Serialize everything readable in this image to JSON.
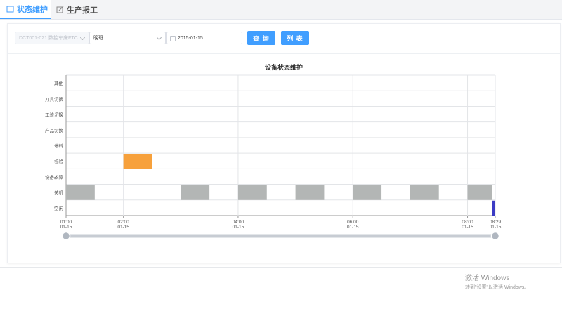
{
  "tabs": [
    {
      "label": "状态维护",
      "active": true,
      "icon": "calendar-icon"
    },
    {
      "label": "生产报工",
      "active": false,
      "icon": "edit-icon"
    }
  ],
  "filters": {
    "machine_value": "DCT001-021 数控车床FTC",
    "shift_value": "晚班",
    "date_value": "2015-01-15",
    "query_label": "查 询",
    "list_label": "列 表"
  },
  "colors": {
    "accent": "#409eff",
    "orange": "#f7a13c",
    "gray": "#b3b6b5",
    "blue": "#3b3bc4"
  },
  "chart_data": {
    "type": "timeline",
    "title": "设备状态维护",
    "categories": [
      "其他",
      "刀具切换",
      "工装切换",
      "产品切换",
      "停料",
      "检验",
      "设备故障",
      "关机",
      "空闲"
    ],
    "x_range": [
      "2015-01-15 01:00",
      "2015-01-15 08:29"
    ],
    "x_ticks": [
      {
        "time": "01:00",
        "date": "01-15"
      },
      {
        "time": "02:00",
        "date": "01-15"
      },
      {
        "time": "04:00",
        "date": "01-15"
      },
      {
        "time": "06:00",
        "date": "01-15"
      },
      {
        "time": "08:00",
        "date": "01-15"
      },
      {
        "time": "08:29",
        "date": "01-15"
      }
    ],
    "segments": [
      {
        "category": "检验",
        "start": "02:00",
        "end": "02:30",
        "color": "#f7a13c"
      },
      {
        "category": "关机",
        "start": "01:00",
        "end": "01:30",
        "color": "#b3b6b5"
      },
      {
        "category": "关机",
        "start": "03:00",
        "end": "03:30",
        "color": "#b3b6b5"
      },
      {
        "category": "关机",
        "start": "04:00",
        "end": "04:30",
        "color": "#b3b6b5"
      },
      {
        "category": "关机",
        "start": "05:00",
        "end": "05:30",
        "color": "#b3b6b5"
      },
      {
        "category": "关机",
        "start": "06:00",
        "end": "06:30",
        "color": "#b3b6b5"
      },
      {
        "category": "关机",
        "start": "07:00",
        "end": "07:30",
        "color": "#b3b6b5"
      },
      {
        "category": "关机",
        "start": "08:00",
        "end": "08:26",
        "color": "#b3b6b5"
      },
      {
        "category": "空闲",
        "start": "08:26",
        "end": "08:29",
        "color": "#3b3bc4"
      }
    ],
    "grid": true
  },
  "watermark": {
    "line1": "激活 Windows",
    "line2": "转到\"设置\"以激活 Windows。"
  }
}
